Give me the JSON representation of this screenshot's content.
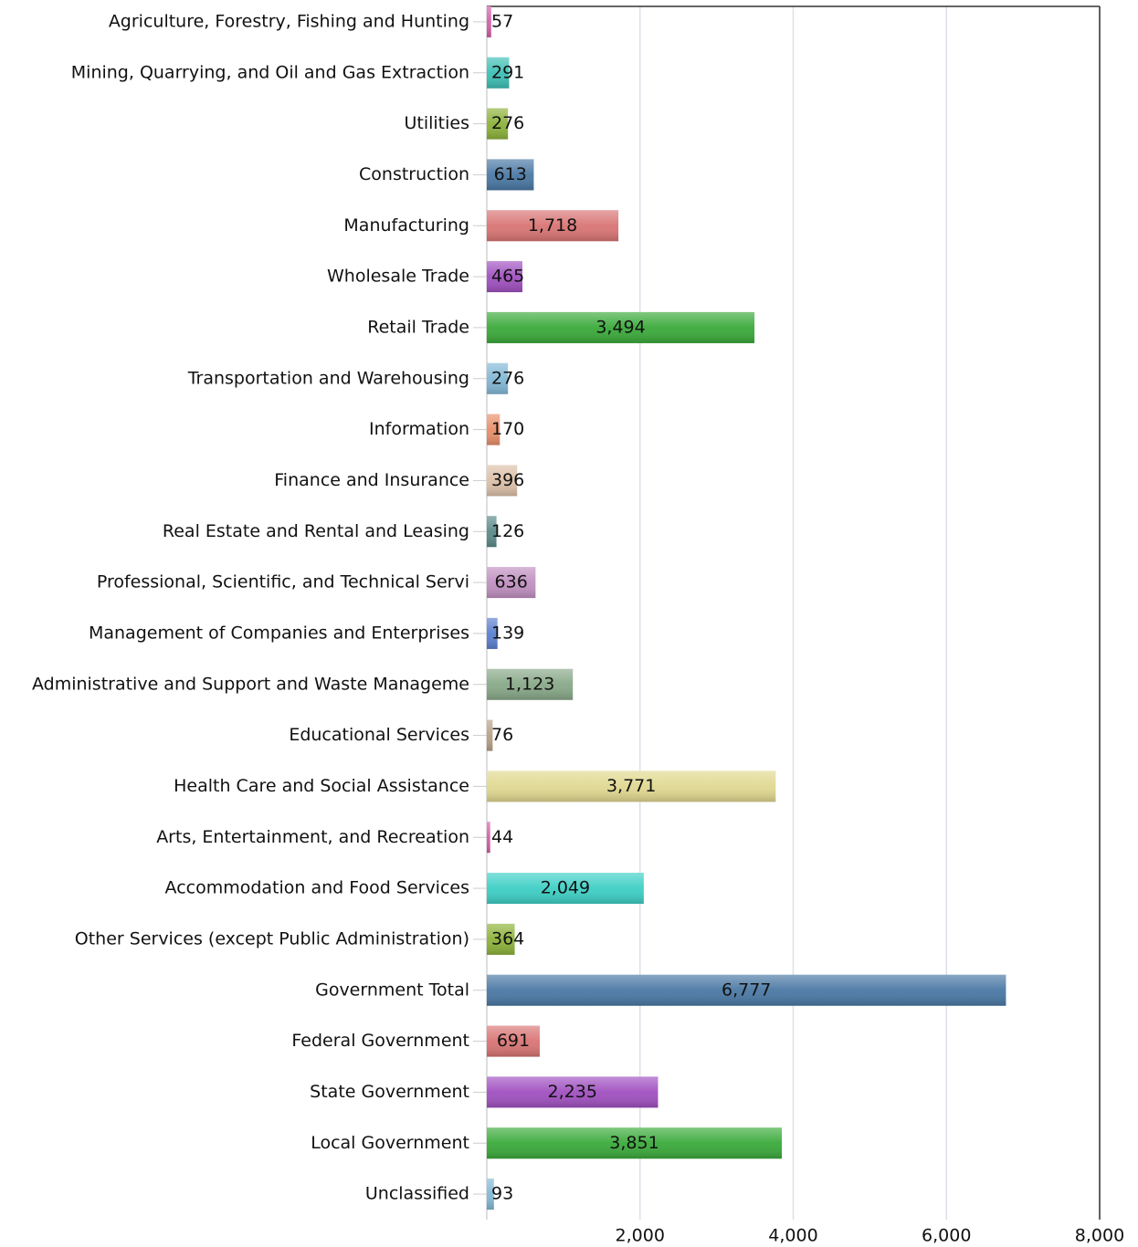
{
  "chart_data": {
    "type": "hbar",
    "categories": [
      "Agriculture, Forestry, Fishing and Hunting",
      "Mining, Quarrying, and Oil and Gas Extraction",
      "Utilities",
      "Construction",
      "Manufacturing",
      "Wholesale Trade",
      "Retail Trade",
      "Transportation and Warehousing",
      "Information",
      "Finance and Insurance",
      "Real Estate and Rental and Leasing",
      "Professional, Scientific, and Technical Servi",
      "Management of Companies and Enterprises",
      "Administrative and Support and Waste Manageme",
      "Educational Services",
      "Health Care and Social Assistance",
      "Arts, Entertainment, and Recreation",
      "Accommodation and Food Services",
      "Other Services (except Public Administration)",
      "Government Total",
      "Federal Government",
      "State Government",
      "Local Government",
      "Unclassified"
    ],
    "values": [
      57,
      291,
      276,
      613,
      1718,
      465,
      3494,
      276,
      170,
      396,
      126,
      636,
      139,
      1123,
      76,
      3771,
      44,
      2049,
      364,
      6777,
      691,
      2235,
      3851,
      93
    ],
    "value_labels": [
      "57",
      "291",
      "276",
      "613",
      "1,718",
      "465",
      "3,494",
      "276",
      "170",
      "396",
      "126",
      "636",
      "139",
      "1,123",
      "76",
      "3,771",
      "44",
      "2,049",
      "364",
      "6,777",
      "691",
      "2,235",
      "3,851",
      "93"
    ],
    "colors": [
      "#d45fa8",
      "#3dbfb5",
      "#8db23a",
      "#4a78a4",
      "#d97474",
      "#a050c0",
      "#3aaa3a",
      "#82b8d6",
      "#e88f6a",
      "#dcc0a8",
      "#5a8a8a",
      "#c090c0",
      "#5a80d0",
      "#88a888",
      "#b8a088",
      "#e0d890",
      "#d45fa8",
      "#3dcfc5",
      "#8db23a",
      "#4a78a4",
      "#d97474",
      "#a050c0",
      "#3aaa3a",
      "#82b8d6"
    ],
    "xlim": [
      0,
      8000
    ],
    "xticks": [
      {
        "value": 2000,
        "label": "2,000"
      },
      {
        "value": 4000,
        "label": "4,000"
      },
      {
        "value": 6000,
        "label": "6,000"
      },
      {
        "value": 8000,
        "label": "8,000"
      }
    ],
    "grid": true
  }
}
